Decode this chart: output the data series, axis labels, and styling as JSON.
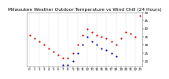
{
  "title": "Milwaukee Weather Outdoor Temperature vs Wind Chill (24 Hours)",
  "title_fontsize": 4.2,
  "bg_color": "#ffffff",
  "plot_bg_color": "#ffffff",
  "grid_color": "#aaaaaa",
  "temp_color": "#dd0000",
  "windchill_color": "#0000cc",
  "x_hours": [
    0,
    1,
    2,
    3,
    4,
    5,
    6,
    7,
    8,
    9,
    10,
    11,
    12,
    13,
    14,
    15,
    16,
    17,
    18,
    19,
    20,
    21,
    22,
    23
  ],
  "temp_values": [
    36,
    34,
    32,
    30,
    28,
    26,
    24,
    22,
    22,
    25,
    30,
    36,
    40,
    38,
    36,
    35,
    34,
    32,
    30,
    34,
    38,
    37,
    35,
    48
  ],
  "windchill_values": [
    null,
    null,
    null,
    null,
    null,
    null,
    null,
    18,
    18,
    20,
    25,
    30,
    35,
    32,
    30,
    28,
    27,
    25,
    23,
    null,
    null,
    null,
    null,
    null
  ],
  "ylim": [
    17,
    50
  ],
  "ytick_right_values": [
    50,
    45,
    40,
    35,
    30,
    25,
    20
  ],
  "ytick_right_labels": [
    "50",
    "45",
    "40",
    "35",
    "30",
    "25",
    "20"
  ],
  "xtick_positions": [
    0,
    1,
    2,
    3,
    4,
    5,
    6,
    7,
    8,
    9,
    10,
    11,
    12,
    13,
    14,
    15,
    16,
    17,
    18,
    19,
    20,
    21,
    22,
    23
  ],
  "xtick_labels": [
    "0",
    "1",
    "2",
    "3",
    "4",
    "5",
    "6",
    "7",
    "8",
    "9",
    "10",
    "11",
    "12",
    "13",
    "14",
    "15",
    "16",
    "17",
    "18",
    "19",
    "20",
    "21",
    "22",
    "23"
  ],
  "vgrid_positions": [
    0,
    2,
    4,
    6,
    8,
    10,
    12,
    14,
    16,
    18,
    20,
    22
  ],
  "marker_size": 2.5,
  "tick_color": "#000000",
  "tick_fontsize": 3.0,
  "spine_color": "#888888",
  "title_color": "#000000"
}
